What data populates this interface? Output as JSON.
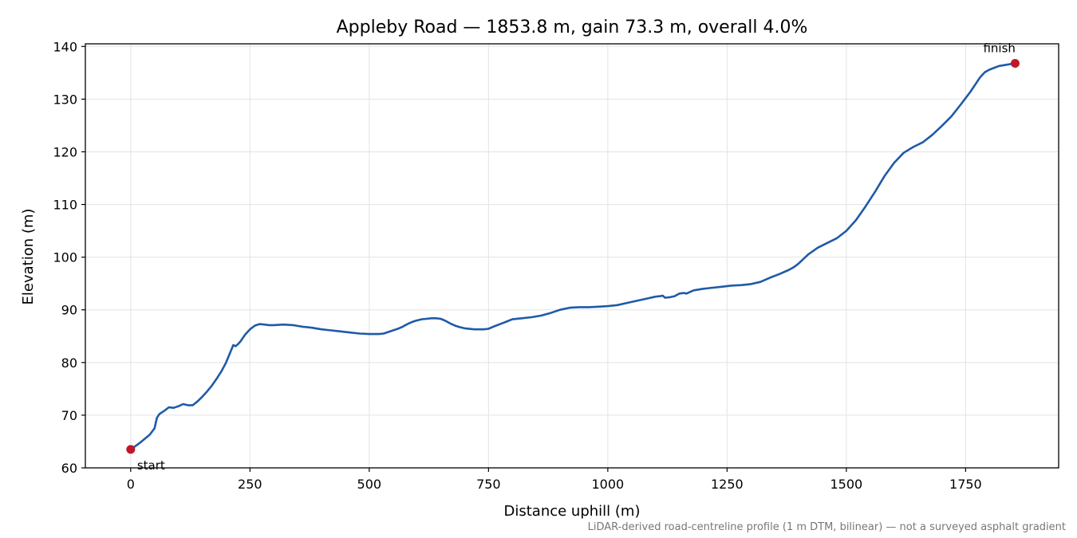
{
  "chart_data": {
    "type": "line",
    "title": "Appleby Road — 1853.8 m, gain 73.3 m, overall 4.0%",
    "xlabel": "Distance uphill (m)",
    "ylabel": "Elevation (m)",
    "footnote": "LiDAR-derived road-centreline profile (1 m DTM, bilinear) — not a surveyed asphalt gradient",
    "xlim": [
      -95,
      1945
    ],
    "ylim": [
      60,
      140.5
    ],
    "xticks": [
      0,
      250,
      500,
      750,
      1000,
      1250,
      1500,
      1750
    ],
    "yticks": [
      60,
      70,
      80,
      90,
      100,
      110,
      120,
      130,
      140
    ],
    "grid": true,
    "line_color": "#1f5aa8",
    "marker_color": "#c0182a",
    "series": [
      {
        "x": [
          0,
          20,
          40,
          50,
          55,
          60,
          65,
          70,
          80,
          90,
          100,
          110,
          120,
          130,
          140,
          150,
          160,
          170,
          180,
          190,
          200,
          210,
          215,
          220,
          225,
          230,
          240,
          250,
          260,
          270,
          280,
          290,
          300,
          320,
          340,
          360,
          380,
          400,
          420,
          440,
          460,
          480,
          500,
          520,
          530,
          540,
          550,
          560,
          570,
          580,
          590,
          600,
          610,
          620,
          630,
          640,
          650,
          660,
          670,
          680,
          690,
          700,
          720,
          740,
          750,
          760,
          780,
          800,
          820,
          840,
          860,
          880,
          900,
          920,
          940,
          960,
          980,
          1000,
          1020,
          1040,
          1060,
          1080,
          1100,
          1110,
          1115,
          1120,
          1130,
          1140,
          1150,
          1160,
          1165,
          1170,
          1180,
          1200,
          1220,
          1240,
          1260,
          1280,
          1300,
          1320,
          1340,
          1360,
          1380,
          1390,
          1400,
          1420,
          1440,
          1460,
          1480,
          1500,
          1520,
          1540,
          1560,
          1580,
          1600,
          1620,
          1640,
          1660,
          1680,
          1700,
          1720,
          1740,
          1760,
          1780,
          1790,
          1800,
          1820,
          1840,
          1853.8
        ],
        "y": [
          63.5,
          64.8,
          66.3,
          67.5,
          69.5,
          70.2,
          70.5,
          70.8,
          71.5,
          71.4,
          71.7,
          72.1,
          71.9,
          71.9,
          72.6,
          73.5,
          74.5,
          75.6,
          76.9,
          78.3,
          80.0,
          82.2,
          83.3,
          83.1,
          83.5,
          84.0,
          85.3,
          86.3,
          87.0,
          87.3,
          87.2,
          87.1,
          87.1,
          87.2,
          87.1,
          86.8,
          86.6,
          86.3,
          86.1,
          85.9,
          85.7,
          85.5,
          85.4,
          85.4,
          85.5,
          85.8,
          86.1,
          86.4,
          86.8,
          87.3,
          87.7,
          88.0,
          88.2,
          88.3,
          88.4,
          88.4,
          88.3,
          87.9,
          87.4,
          87.0,
          86.7,
          86.5,
          86.3,
          86.3,
          86.4,
          86.8,
          87.5,
          88.2,
          88.4,
          88.6,
          88.9,
          89.4,
          90.0,
          90.4,
          90.5,
          90.5,
          90.6,
          90.7,
          90.9,
          91.3,
          91.7,
          92.1,
          92.5,
          92.6,
          92.7,
          92.3,
          92.4,
          92.6,
          93.1,
          93.2,
          93.1,
          93.3,
          93.7,
          94.0,
          94.2,
          94.4,
          94.6,
          94.7,
          94.9,
          95.3,
          96.1,
          96.8,
          97.6,
          98.1,
          98.8,
          100.5,
          101.8,
          102.7,
          103.6,
          105.0,
          107.0,
          109.6,
          112.4,
          115.4,
          117.9,
          119.8,
          120.9,
          121.8,
          123.2,
          124.9,
          126.7,
          129.0,
          131.4,
          134.1,
          135.1,
          135.6,
          136.3,
          136.6,
          136.8
        ]
      }
    ],
    "annotations": [
      {
        "label": "start",
        "x": 0,
        "y": 63.5
      },
      {
        "label": "finish",
        "x": 1853.8,
        "y": 136.8
      }
    ]
  }
}
